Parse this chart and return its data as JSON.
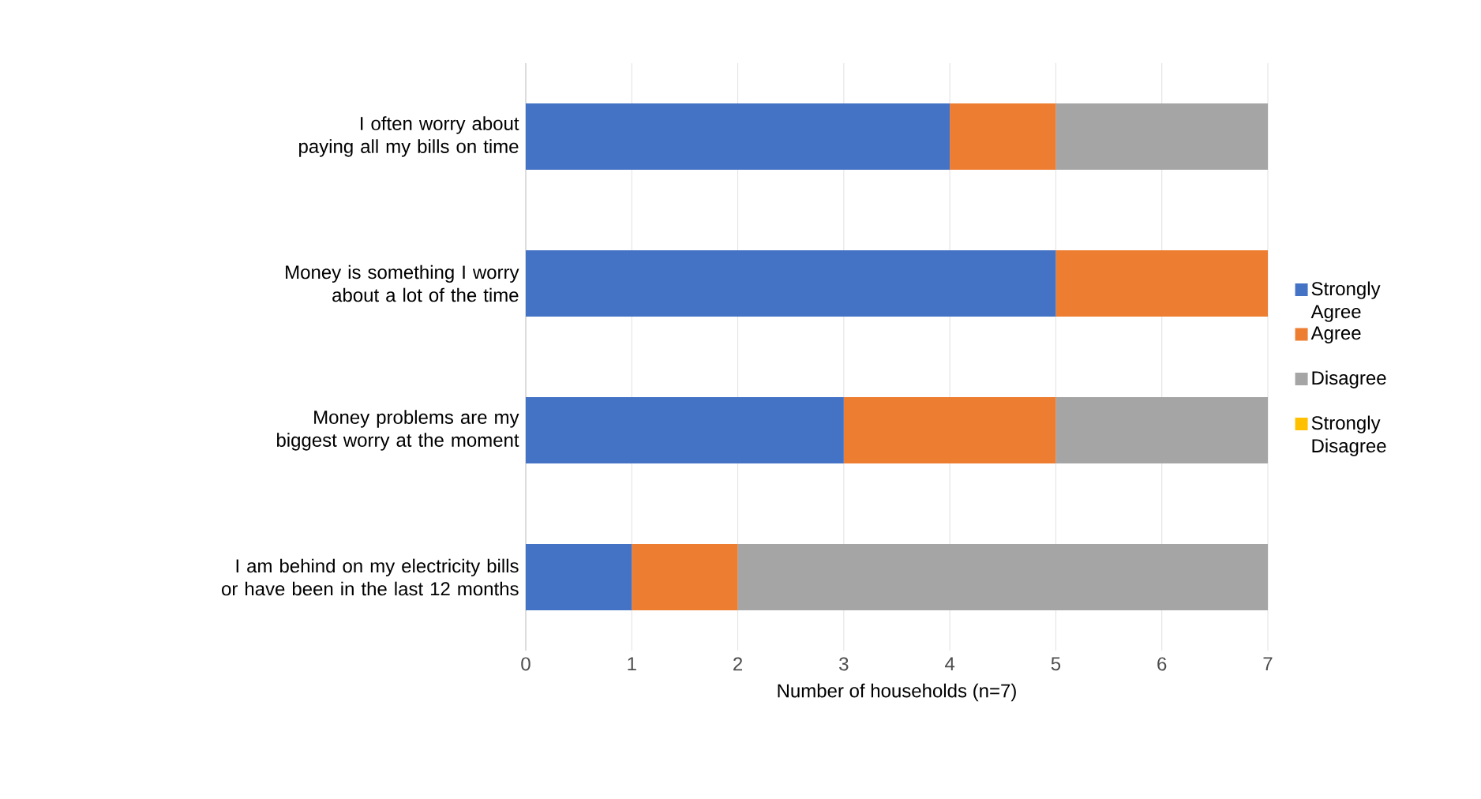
{
  "chart_data": {
    "type": "bar",
    "orientation": "horizontal",
    "stacked": true,
    "categories": [
      "I often worry about paying all my bills on time",
      "Money is something I worry about a lot of the time",
      "Money problems are my biggest worry at the moment",
      "I am behind on my electricity bills or have been in the last 12 months"
    ],
    "series": [
      {
        "name": "Strongly Agree",
        "color": "#4472c4",
        "values": [
          4,
          5,
          3,
          1
        ]
      },
      {
        "name": "Agree",
        "color": "#ed7d31",
        "values": [
          1,
          2,
          2,
          1
        ]
      },
      {
        "name": "Disagree",
        "color": "#a5a5a5",
        "values": [
          2,
          0,
          2,
          5
        ]
      },
      {
        "name": "Strongly Disagree",
        "color": "#ffc000",
        "values": [
          0,
          0,
          0,
          0
        ]
      }
    ],
    "xlabel": "Number of households (n=7)",
    "xlim": [
      0,
      7
    ],
    "xticks": [
      0,
      1,
      2,
      3,
      4,
      5,
      6,
      7
    ],
    "grid": "x",
    "legend": "right"
  }
}
